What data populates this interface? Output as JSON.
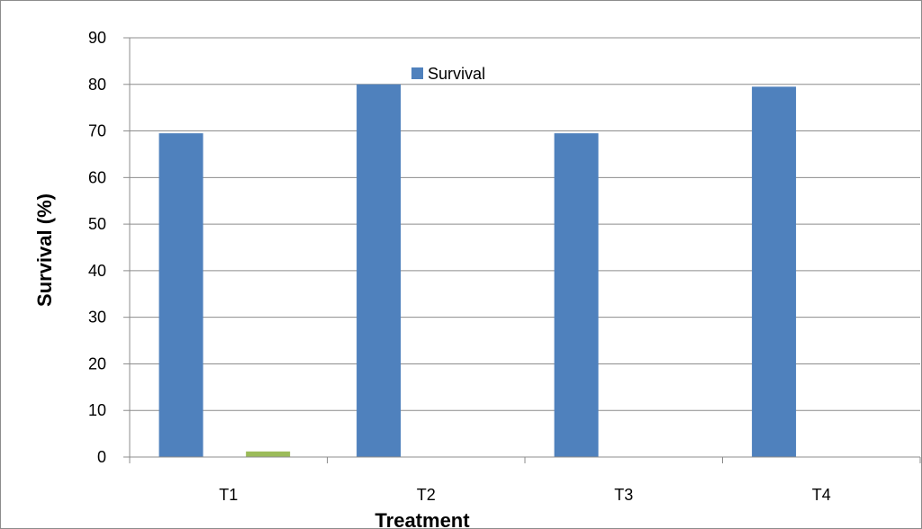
{
  "chart_data": {
    "type": "bar",
    "categories": [
      "T1",
      "T2",
      "T3",
      "T4"
    ],
    "series": [
      {
        "name": "Survival",
        "values": [
          69.5,
          80,
          69.5,
          79.5
        ],
        "color": "#4f81bd"
      },
      {
        "values": [
          1.2,
          0,
          0,
          0
        ],
        "color": "#9bbb59"
      }
    ],
    "title": "",
    "xlabel": "Treatment",
    "ylabel": "Survival (%)",
    "ylim": [
      0,
      90
    ],
    "yticks": [
      0,
      10,
      20,
      30,
      40,
      50,
      60,
      70,
      80,
      90
    ],
    "grid": true,
    "legend": "top-center",
    "legend_entries": [
      "Survival"
    ]
  }
}
